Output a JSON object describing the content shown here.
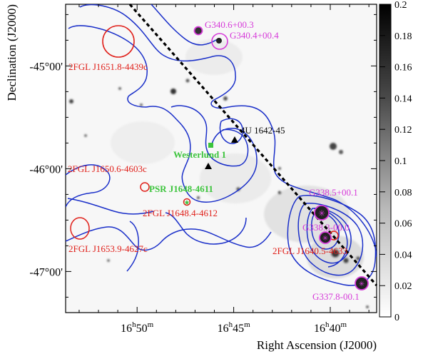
{
  "chart_data": {
    "type": "heatmap",
    "xlabel": "Right Ascension (J2000)",
    "ylabel": "Declination (J2000)",
    "x_ticks": [
      {
        "label_h": "16",
        "label_m": "50",
        "ra_min": 1010
      },
      {
        "label_h": "16",
        "label_m": "45",
        "ra_min": 1005
      },
      {
        "label_h": "16",
        "label_m": "40",
        "ra_min": 1000
      }
    ],
    "xlim_ra_min": [
      1013.7,
      997.6
    ],
    "y_ticks": [
      {
        "label": "-45°00'",
        "dec": -45.0
      },
      {
        "label": "-46°00'",
        "dec": -46.0
      },
      {
        "label": "-47°00'",
        "dec": -47.0
      }
    ],
    "ylim": [
      -47.4,
      -44.4
    ],
    "colorbar": {
      "range": [
        0,
        0.2
      ],
      "ticks": [
        "0.2",
        "0.18",
        "0.16",
        "0.14",
        "0.12",
        "0.1",
        "0.08",
        "0.06",
        "0.04",
        "0.02",
        "0"
      ],
      "colormap": "white-to-black"
    },
    "galactic_plane": {
      "style": "dashed",
      "color": "#000000"
    },
    "sources": [
      {
        "name": "G340.6+00.3",
        "kind": "snr",
        "ra_min": 1008.9,
        "dec": -44.53
      },
      {
        "name": "G340.4+00.4",
        "kind": "snr",
        "ra_min": 1007.4,
        "dec": -44.62
      },
      {
        "name": "2FGL J1651.8-4439c",
        "kind": "fermi",
        "ra_min": 1011.8,
        "dec": -44.65
      },
      {
        "name": "4U 1642-45",
        "kind": "xray",
        "ra_min": 1005.9,
        "dec": -45.62
      },
      {
        "name": "Westerlund 1",
        "kind": "cluster",
        "ra_min": 1007.1,
        "dec": -45.85
      },
      {
        "name": "2FGL J1650.6-4603c",
        "kind": "fermi",
        "ra_min": 1010.6,
        "dec": -46.05
      },
      {
        "name": "PSR J1648-4611",
        "kind": "pulsar",
        "ra_min": 1008.8,
        "dec": -46.19
      },
      {
        "name": "2FGL J1648.4-4612",
        "kind": "fermi",
        "ra_min": 1008.4,
        "dec": -46.2
      },
      {
        "name": "G338.5+00.1",
        "kind": "snr",
        "ra_min": 1000.9,
        "dec": -46.28
      },
      {
        "name": "G338.3-00.0",
        "kind": "snr",
        "ra_min": 1000.7,
        "dec": -46.55
      },
      {
        "name": "2FGL J1640.5-4633",
        "kind": "fermi",
        "ra_min": 1000.5,
        "dec": -46.55
      },
      {
        "name": "2FGL J1653.9-4627c",
        "kind": "fermi",
        "ra_min": 1013.9,
        "dec": -46.45
      },
      {
        "name": "G337.8-00.1",
        "kind": "snr",
        "ra_min": 998.6,
        "dec": -46.97
      }
    ],
    "legend": "none",
    "grid": false
  },
  "labels": {
    "G340_6": "G340.6+00.3",
    "G340_4": "G340.4+00.4",
    "fgl_1651": "2FGL J1651.8-4439c",
    "u4_1642": "4U 1642-45",
    "westerlund": "Westerlund 1",
    "fgl_1650": "2FGL J1650.6-4603c",
    "psr": "PSR J1648-4611",
    "fgl_1648": "2FGL J1648.4-4612",
    "G338_5": "G338.5+00.1",
    "G338_3": "G338.3-00.0",
    "fgl_1640": "2FGL J1640.5-4633",
    "fgl_1653": "2FGL J1653.9-4627c",
    "G337_8": "G337.8-00.1"
  },
  "colors": {
    "contour": "#1a2fc9",
    "fermi": "#e0201a",
    "snr": "#d63ad9",
    "cluster": "#3cc43c",
    "annotation": "#000000"
  }
}
